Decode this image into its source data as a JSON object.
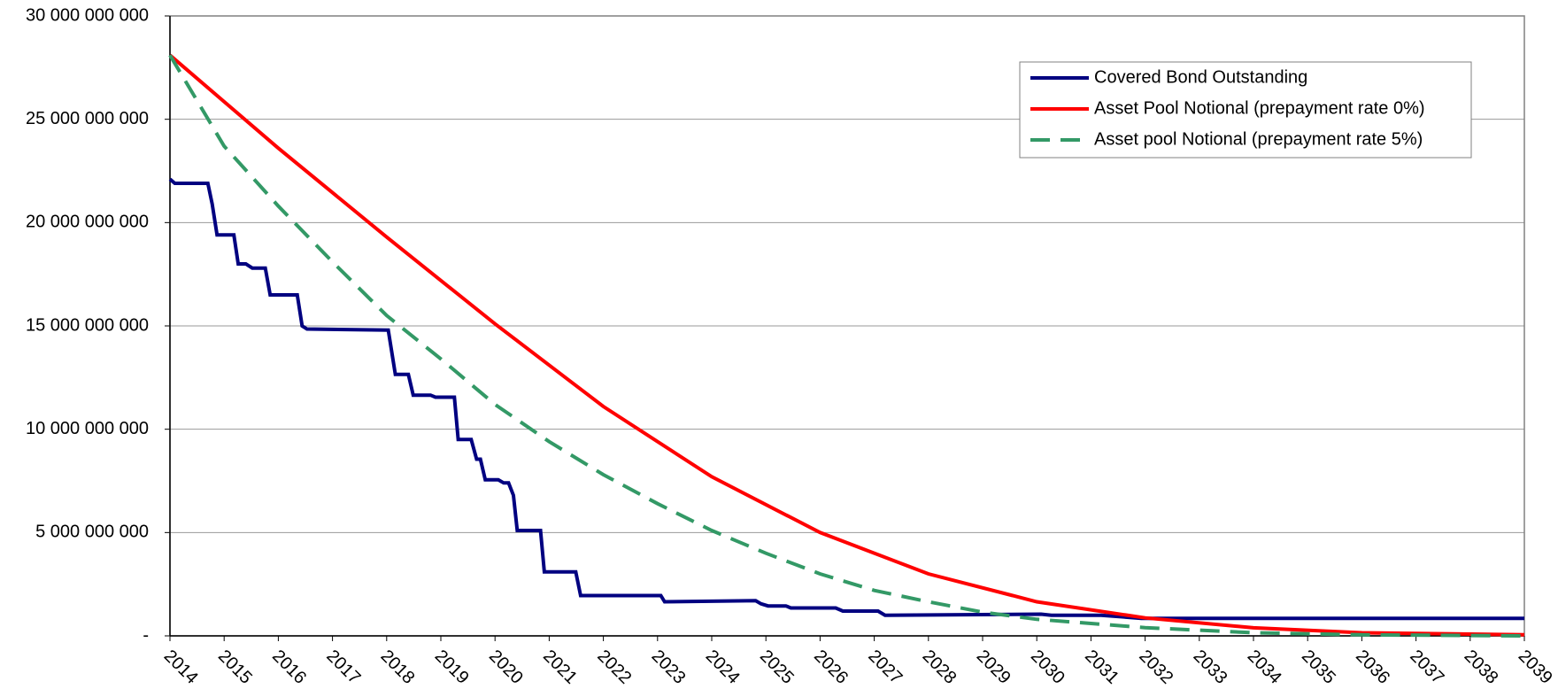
{
  "chart_data": {
    "type": "line",
    "xlim": [
      2014,
      2039
    ],
    "xticks": [
      2014,
      2015,
      2016,
      2017,
      2018,
      2019,
      2020,
      2021,
      2022,
      2023,
      2024,
      2025,
      2026,
      2027,
      2028,
      2029,
      2030,
      2031,
      2032,
      2033,
      2034,
      2035,
      2036,
      2037,
      2038,
      2039
    ],
    "ylim": [
      0,
      30000000000
    ],
    "yticks": [
      {
        "value": 0,
        "label": "-"
      },
      {
        "value": 5000000000,
        "label": "5 000 000 000"
      },
      {
        "value": 10000000000,
        "label": "10 000 000 000"
      },
      {
        "value": 15000000000,
        "label": "15 000 000 000"
      },
      {
        "value": 20000000000,
        "label": "20 000 000 000"
      },
      {
        "value": 25000000000,
        "label": "25 000 000 000"
      },
      {
        "value": 30000000000,
        "label": "30 000 000 000"
      }
    ],
    "grid": true,
    "legend": "upper right",
    "series": [
      {
        "name": "Covered Bond Outstanding",
        "color": "#000080",
        "linestyle": "solid",
        "x": [
          2014.0,
          2014.09,
          2014.7,
          2014.78,
          2014.87,
          2015.18,
          2015.26,
          2015.4,
          2015.52,
          2015.76,
          2015.85,
          2016.35,
          2016.44,
          2016.53,
          2018.03,
          2018.16,
          2018.4,
          2018.49,
          2018.81,
          2018.9,
          2019.25,
          2019.32,
          2019.56,
          2019.66,
          2019.73,
          2019.82,
          2020.06,
          2020.16,
          2020.25,
          2020.34,
          2020.41,
          2020.84,
          2020.91,
          2021.49,
          2021.58,
          2023.06,
          2023.13,
          2024.81,
          2024.91,
          2025.04,
          2025.37,
          2025.46,
          2026.29,
          2026.42,
          2027.07,
          2027.2,
          2030.08,
          2030.27,
          2031.19,
          2031.93,
          2039.0
        ],
        "values": [
          22100000000,
          21900000000,
          21900000000,
          20900000000,
          19400000000,
          19400000000,
          18000000000,
          18000000000,
          17800000000,
          17800000000,
          16500000000,
          16500000000,
          15000000000,
          14850000000,
          14800000000,
          12650000000,
          12650000000,
          11650000000,
          11650000000,
          11550000000,
          11550000000,
          9500000000,
          9500000000,
          8550000000,
          8550000000,
          7550000000,
          7550000000,
          7400000000,
          7400000000,
          6800000000,
          5100000000,
          5100000000,
          3100000000,
          3100000000,
          1950000000,
          1950000000,
          1650000000,
          1700000000,
          1550000000,
          1450000000,
          1450000000,
          1350000000,
          1350000000,
          1200000000,
          1200000000,
          1000000000,
          1050000000,
          1000000000,
          1000000000,
          850000000,
          850000000
        ]
      },
      {
        "name": "Asset Pool Notional (prepayment rate 0%)",
        "color": "#ff0000",
        "linestyle": "solid",
        "x": [
          2014,
          2016,
          2018,
          2020,
          2022,
          2024,
          2026,
          2028,
          2030,
          2032,
          2034,
          2036,
          2039
        ],
        "values": [
          28100000000,
          23600000000,
          19300000000,
          15100000000,
          11100000000,
          7700000000,
          5000000000,
          3000000000,
          1650000000,
          870000000,
          390000000,
          150000000,
          50000000
        ]
      },
      {
        "name": "Asset pool Notional (prepayment rate 5%)",
        "color": "#339966",
        "linestyle": "dashed",
        "x": [
          2014,
          2015,
          2016,
          2017,
          2018,
          2019,
          2020,
          2021,
          2022,
          2023,
          2024,
          2025,
          2026,
          2027,
          2028,
          2029,
          2030,
          2032,
          2034,
          2036,
          2039
        ],
        "values": [
          28100000000,
          23700000000,
          20800000000,
          18100000000,
          15500000000,
          13400000000,
          11200000000,
          9400000000,
          7800000000,
          6400000000,
          5100000000,
          4000000000,
          3000000000,
          2200000000,
          1650000000,
          1150000000,
          800000000,
          400000000,
          150000000,
          50000000,
          0
        ]
      }
    ]
  }
}
